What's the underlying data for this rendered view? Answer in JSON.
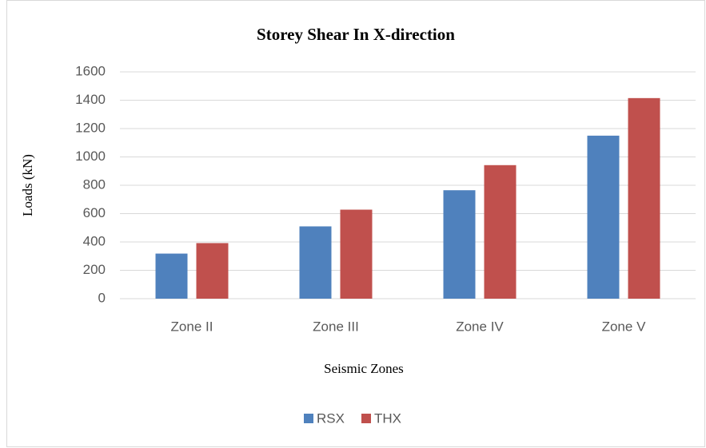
{
  "chart_data": {
    "type": "bar",
    "title": "Storey Shear In X-direction",
    "x_label": "Seismic Zones",
    "y_label": "Loads (kN)",
    "categories": [
      "Zone II",
      "Zone III",
      "Zone IV",
      "Zone V"
    ],
    "series": [
      {
        "name": "RSX",
        "color": "#4f81bd",
        "values": [
          318,
          510,
          765,
          1150
        ]
      },
      {
        "name": "THX",
        "color": "#c0504d",
        "values": [
          392,
          628,
          942,
          1415
        ]
      }
    ],
    "ylim": [
      0,
      1600
    ],
    "yticks": [
      0,
      200,
      400,
      600,
      800,
      1000,
      1200,
      1400,
      1600
    ],
    "grid": true,
    "legend": "bottom"
  }
}
